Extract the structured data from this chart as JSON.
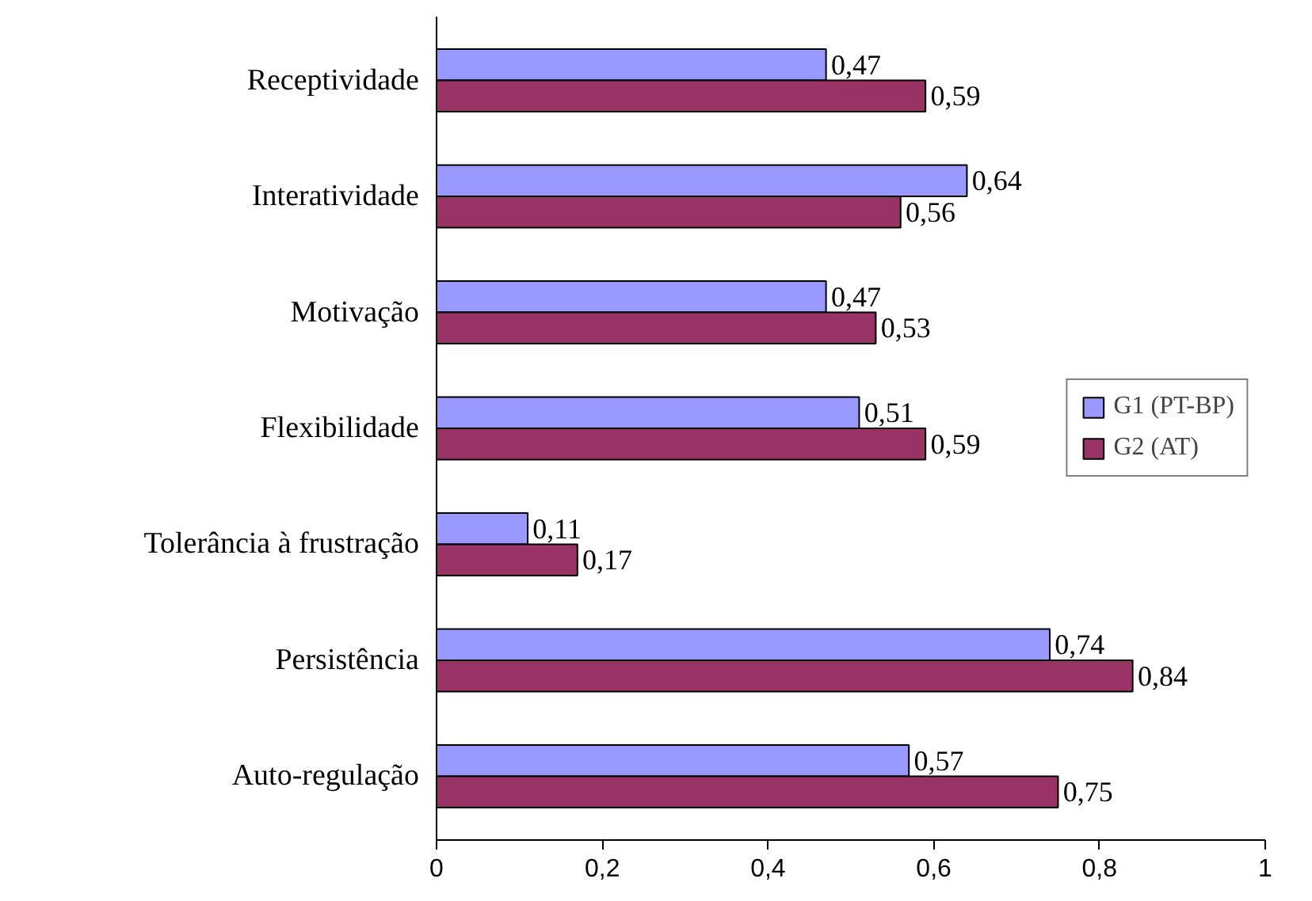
{
  "chart_data": {
    "type": "bar",
    "orientation": "horizontal",
    "categories": [
      "Receptividade",
      "Interatividade",
      "Motivação",
      "Flexibilidade",
      "Tolerância à frustração",
      "Persistência",
      "Auto-regulação"
    ],
    "series": [
      {
        "name": "G1 (PT-BP)",
        "color": "#9999ff",
        "values": [
          0.47,
          0.64,
          0.47,
          0.51,
          0.11,
          0.74,
          0.57
        ],
        "value_labels": [
          "0,47",
          "0,64",
          "0,47",
          "0,51",
          "0,11",
          "0,74",
          "0,57"
        ]
      },
      {
        "name": "G2 (AT)",
        "color": "#993366",
        "values": [
          0.59,
          0.56,
          0.53,
          0.59,
          0.17,
          0.84,
          0.75
        ],
        "value_labels": [
          "0,59",
          "0,56",
          "0,53",
          "0,59",
          "0,17",
          "0,84",
          "0,75"
        ]
      }
    ],
    "xlim": [
      0,
      1
    ],
    "xticks": [
      0,
      {
        "value": 0.2,
        "label": "0,2"
      },
      {
        "value": 0.4,
        "label": "0,4"
      },
      {
        "value": 0.6,
        "label": "0,6"
      },
      {
        "value": 0.8,
        "label": "0,8"
      },
      1
    ],
    "legend": "right",
    "grid": false
  }
}
